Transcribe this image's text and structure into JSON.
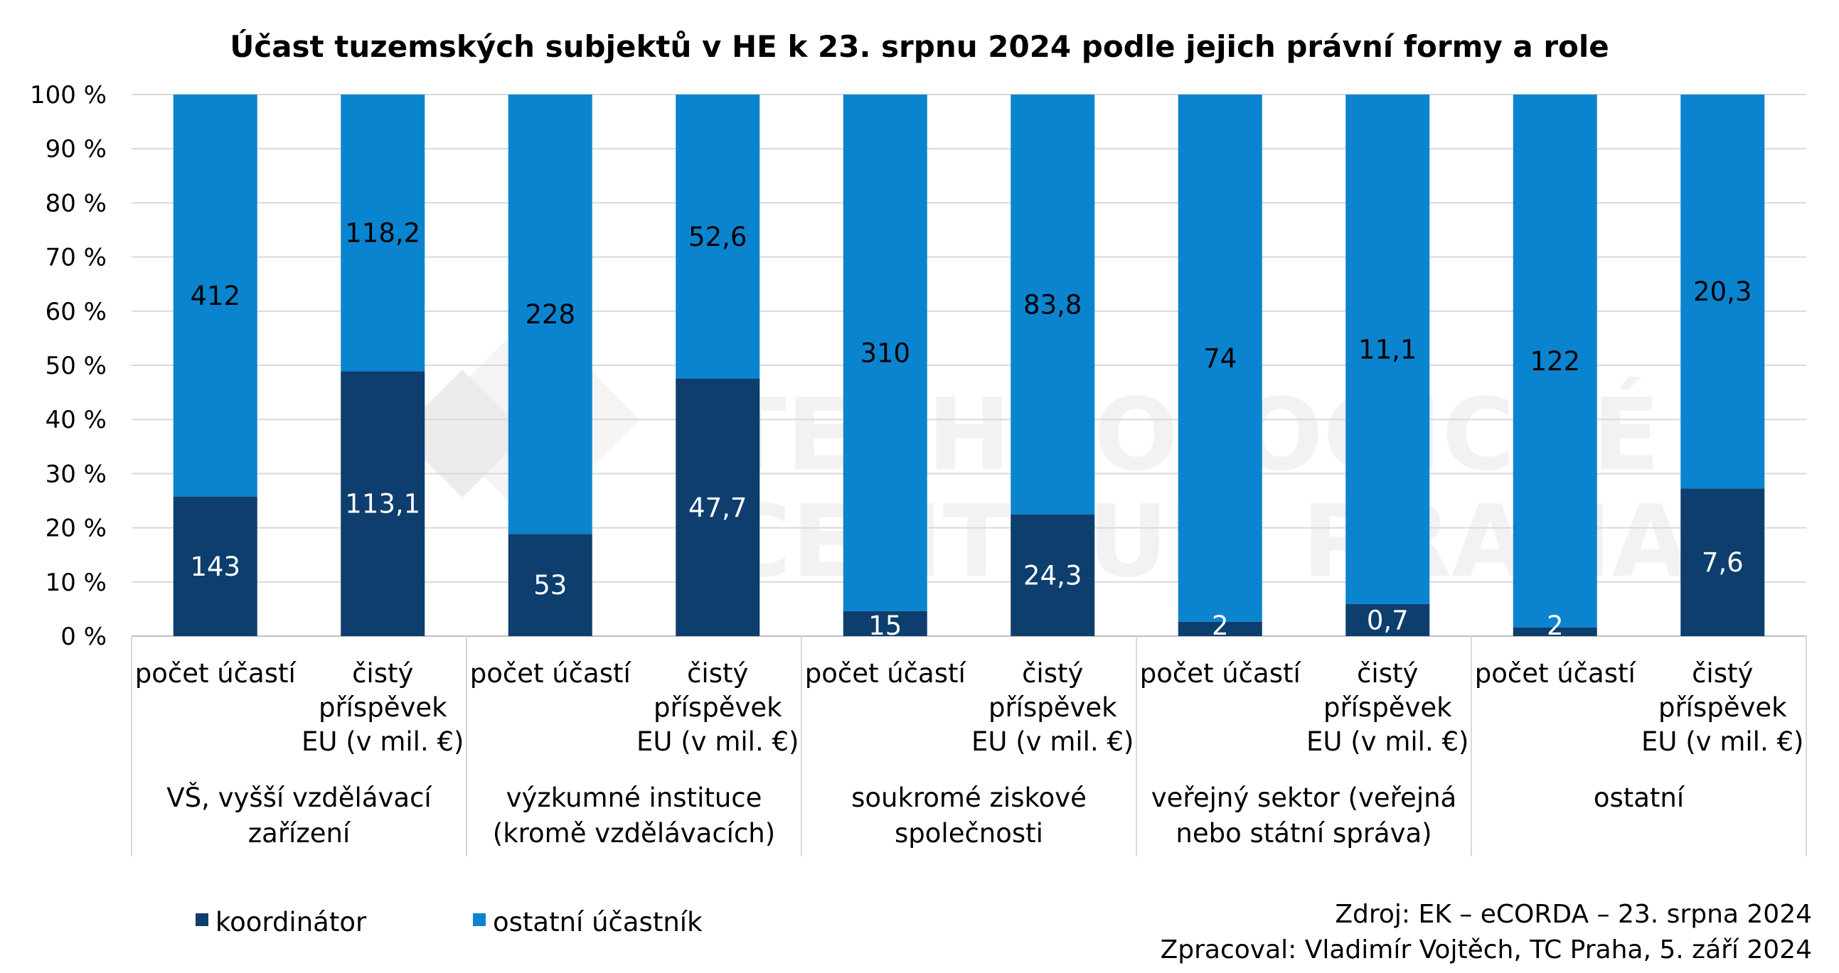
{
  "colors": {
    "koordinator": "#0d3e6e",
    "ostatni": "#0b84cf",
    "grid": "#d9d9d9",
    "axis": "#bfbfbf"
  },
  "watermark": [
    "TECHNOLOGICKÉ",
    "CENTRUM PRAHA"
  ],
  "legend": [
    {
      "label": "koordinátor",
      "color": "#0d3e6e"
    },
    {
      "label": "ostatní účastník",
      "color": "#0b84cf"
    }
  ],
  "source": {
    "line1": "Zdroj: EK – eCORDA – 23. srpna 2024",
    "line2": "Zpracoval: Vladimír Vojtěch, TC Praha, 5. září 2024"
  },
  "chart_data": {
    "type": "bar",
    "stacked": "percent",
    "title": "Účast tuzemských subjektů v HE k 23. srpnu 2024 podle jejich právní formy a role",
    "ylim": [
      0,
      100
    ],
    "yticks": [
      "0 %",
      "10 %",
      "20 %",
      "30 %",
      "40 %",
      "50 %",
      "60 %",
      "70 %",
      "80 %",
      "90 %",
      "100 %"
    ],
    "grid": true,
    "legend_position": "bottom-left",
    "category_label_lines": {
      "pocet": [
        "počet účastí"
      ],
      "prispevek": [
        "čistý",
        "příspěvek",
        "EU (v mil. €)"
      ]
    },
    "groups": [
      {
        "label": [
          "VŠ, vyšší vzdělávací",
          "zařízení"
        ],
        "bars": [
          {
            "category": "počet účastí",
            "kind": "pocet",
            "koordinator": 143,
            "ostatni": 412,
            "koordinator_label": "143",
            "ostatni_label": "412"
          },
          {
            "category": "čistý příspěvek EU (v mil. €)",
            "kind": "prispevek",
            "koordinator": 113.1,
            "ostatni": 118.2,
            "koordinator_label": "113,1",
            "ostatni_label": "118,2"
          }
        ]
      },
      {
        "label": [
          "výzkumné instituce",
          "(kromě vzdělávacích)"
        ],
        "bars": [
          {
            "category": "počet účastí",
            "kind": "pocet",
            "koordinator": 53,
            "ostatni": 228,
            "koordinator_label": "53",
            "ostatni_label": "228"
          },
          {
            "category": "čistý příspěvek EU (v mil. €)",
            "kind": "prispevek",
            "koordinator": 47.7,
            "ostatni": 52.6,
            "koordinator_label": "47,7",
            "ostatni_label": "52,6"
          }
        ]
      },
      {
        "label": [
          "soukromé ziskové",
          "společnosti"
        ],
        "bars": [
          {
            "category": "počet účastí",
            "kind": "pocet",
            "koordinator": 15,
            "ostatni": 310,
            "koordinator_label": "15",
            "ostatni_label": "310"
          },
          {
            "category": "čistý příspěvek EU (v mil. €)",
            "kind": "prispevek",
            "koordinator": 24.3,
            "ostatni": 83.8,
            "koordinator_label": "24,3",
            "ostatni_label": "83,8"
          }
        ]
      },
      {
        "label": [
          "veřejný sektor (veřejná",
          "nebo státní správa)"
        ],
        "bars": [
          {
            "category": "počet účastí",
            "kind": "pocet",
            "koordinator": 2,
            "ostatni": 74,
            "koordinator_label": "2",
            "ostatni_label": "74"
          },
          {
            "category": "čistý příspěvek EU (v mil. €)",
            "kind": "prispevek",
            "koordinator": 0.7,
            "ostatni": 11.1,
            "koordinator_label": "0,7",
            "ostatni_label": "11,1"
          }
        ]
      },
      {
        "label": [
          "ostatní"
        ],
        "bars": [
          {
            "category": "počet účastí",
            "kind": "pocet",
            "koordinator": 2,
            "ostatni": 122,
            "koordinator_label": "2",
            "ostatni_label": "122"
          },
          {
            "category": "čistý příspěvek EU (v mil. €)",
            "kind": "prispevek",
            "koordinator": 7.6,
            "ostatni": 20.3,
            "koordinator_label": "7,6",
            "ostatni_label": "20,3"
          }
        ]
      }
    ]
  }
}
